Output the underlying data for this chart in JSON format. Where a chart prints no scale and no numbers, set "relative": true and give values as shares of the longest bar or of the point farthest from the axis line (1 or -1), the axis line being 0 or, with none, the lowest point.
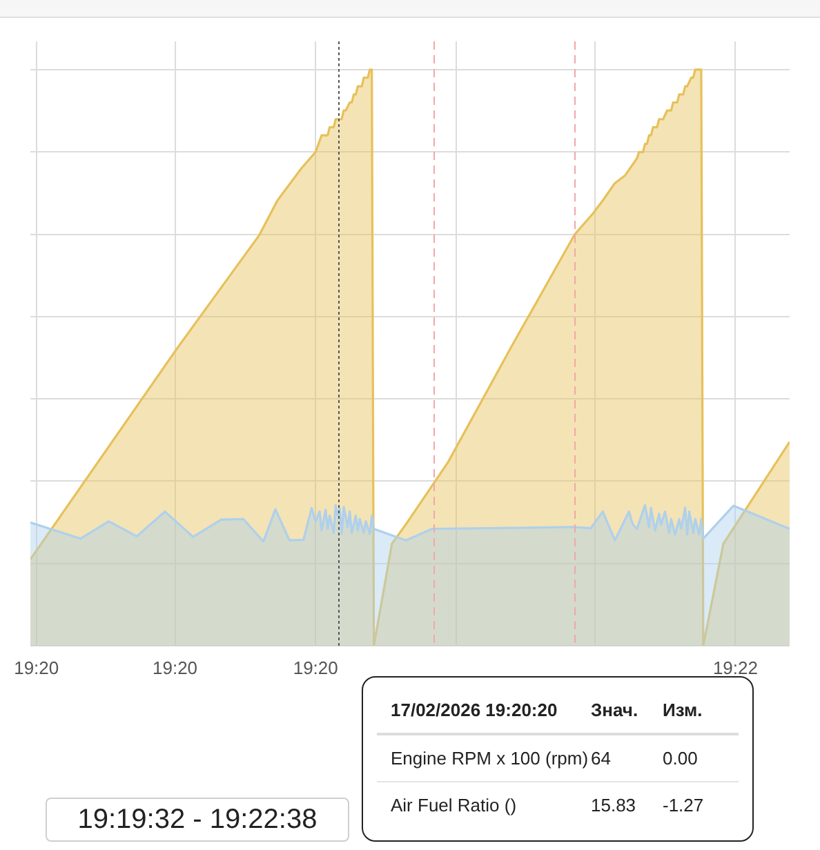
{
  "chart_data": {
    "type": "area",
    "relative": true,
    "series": [
      {
        "color": "#e6c15a",
        "x": [
          19.3261,
          19.3334,
          19.3375,
          19.3384,
          19.3396,
          19.3403,
          19.3406,
          19.3409,
          19.341,
          19.3412,
          19.3413,
          19.3416,
          19.3417,
          19.3418,
          19.342,
          19.3421,
          19.3422,
          19.3423,
          19.3424,
          19.3426,
          19.3427,
          19.3429,
          19.343,
          19.3431,
          19.3432,
          19.3441,
          19.3448,
          19.3469,
          19.35,
          19.3532,
          19.3541,
          19.3546,
          19.3552,
          19.3557,
          19.3563,
          19.3564,
          19.3566,
          19.3567,
          19.3568,
          19.3569,
          19.357,
          19.3571,
          19.3573,
          19.3574,
          19.3576,
          19.3578,
          19.358,
          19.3581,
          19.3583,
          19.3584,
          19.3586,
          19.3587,
          19.3588,
          19.359,
          19.3591,
          19.3592,
          19.3595,
          19.3596,
          19.3606,
          19.3639
        ],
        "values": [
          0.15,
          0.516,
          0.713,
          0.773,
          0.829,
          0.857,
          0.886,
          0.886,
          0.9,
          0.9,
          0.914,
          0.914,
          0.929,
          0.929,
          0.943,
          0.943,
          0.957,
          0.957,
          0.971,
          0.971,
          0.986,
          0.986,
          1,
          1,
          0,
          0.177,
          0.211,
          0.319,
          0.516,
          0.714,
          0.75,
          0.773,
          0.803,
          0.816,
          0.846,
          0.857,
          0.857,
          0.871,
          0.871,
          0.886,
          0.886,
          0.9,
          0.9,
          0.914,
          0.914,
          0.929,
          0.929,
          0.943,
          0.943,
          0.957,
          0.957,
          0.971,
          0.971,
          0.986,
          0.986,
          1,
          1,
          0,
          0.177,
          0.354
        ]
      },
      {
        "color": "#aed0ec",
        "x": [
          19.3261,
          19.3286,
          19.33,
          19.3314,
          19.3328,
          19.3342,
          19.3356,
          19.3367,
          19.3377,
          19.3383,
          19.339,
          19.3397,
          19.3401,
          19.3403,
          19.3405,
          19.3406,
          19.3408,
          19.3409,
          19.341,
          19.3412,
          19.3413,
          19.3414,
          19.3415,
          19.3416,
          19.3417,
          19.3419,
          19.342,
          19.3421,
          19.3423,
          19.3424,
          19.3425,
          19.3427,
          19.3428,
          19.343,
          19.3431,
          19.3432,
          19.3448,
          19.3461,
          19.3532,
          19.354,
          19.3546,
          19.3552,
          19.3559,
          19.3561,
          19.3563,
          19.3567,
          19.3569,
          19.357,
          19.3572,
          19.3574,
          19.3575,
          19.3577,
          19.3579,
          19.358,
          19.3582,
          19.3584,
          19.3585,
          19.3587,
          19.3588,
          19.3589,
          19.3591,
          19.3592,
          19.3594,
          19.3595,
          19.3596,
          19.3611,
          19.3639
        ],
        "values": [
          0.214,
          0.186,
          0.216,
          0.19,
          0.233,
          0.189,
          0.219,
          0.22,
          0.181,
          0.237,
          0.183,
          0.184,
          0.239,
          0.216,
          0.233,
          0.2,
          0.236,
          0.203,
          0.226,
          0.196,
          0.244,
          0.226,
          0.239,
          0.194,
          0.241,
          0.206,
          0.233,
          0.196,
          0.226,
          0.2,
          0.22,
          0.196,
          0.216,
          0.194,
          0.226,
          0.203,
          0.183,
          0.203,
          0.206,
          0.204,
          0.233,
          0.183,
          0.233,
          0.21,
          0.203,
          0.244,
          0.206,
          0.239,
          0.2,
          0.229,
          0.21,
          0.233,
          0.196,
          0.22,
          0.193,
          0.22,
          0.203,
          0.24,
          0.193,
          0.233,
          0.196,
          0.22,
          0.193,
          0.22,
          0.186,
          0.243,
          0.203
        ]
      }
    ],
    "xlim": [
      19.3261,
      19.3639
    ],
    "xticks": [
      {
        "value": 19.3264,
        "label": "19:20"
      },
      {
        "value": 19.3333,
        "label": "19:20"
      },
      {
        "value": 19.3403,
        "label": "19:20"
      },
      {
        "value": 19.3473,
        "label": null
      },
      {
        "value": 19.3542,
        "label": null
      },
      {
        "value": 19.3612,
        "label": "19:22"
      }
    ],
    "grid": true,
    "marker": "none",
    "ref_lines": [
      {
        "axis": "x",
        "value": 19.3462,
        "color": "#f2a7a7",
        "line_style": "dashed"
      },
      {
        "axis": "x",
        "value": 19.3532,
        "color": "#f2a7a7",
        "line_style": "dashed"
      },
      {
        "axis": "x",
        "value": 19.3414,
        "color": "#555555",
        "line_style": "dotted"
      }
    ],
    "annotations": [
      "17/02/2026 19:20:20",
      "Знач.",
      "Изм.",
      "Engine RPM x 100 (rpm)",
      "64",
      "0.00",
      "Air Fuel Ratio ()",
      "15.83",
      "-1.27",
      "19:19:32 - 19:22:38"
    ]
  }
}
